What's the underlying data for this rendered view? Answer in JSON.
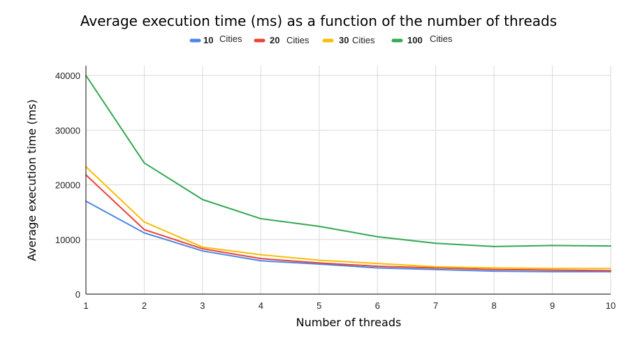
{
  "chart_data": {
    "type": "line",
    "title": "Average execution time (ms) as a function of the number of threads",
    "xlabel": "Number of threads",
    "ylabel": "Average execution time (ms)",
    "x": [
      1,
      2,
      3,
      4,
      5,
      6,
      7,
      8,
      9,
      10
    ],
    "xlim": [
      1,
      10
    ],
    "ylim": [
      0,
      40000
    ],
    "yticks": [
      0,
      10000,
      20000,
      30000,
      40000
    ],
    "grid": true,
    "legend_position": "top-center",
    "series": [
      {
        "name": "10 Cities",
        "legend_number": "10",
        "legend_word": "Cities",
        "color": "#4a86e8",
        "values": [
          17000,
          11200,
          7900,
          6100,
          5500,
          4800,
          4500,
          4200,
          4100,
          4100
        ]
      },
      {
        "name": "20 Cities",
        "legend_number": "20",
        "legend_word": "Cities",
        "color": "#e84335",
        "values": [
          21800,
          11800,
          8300,
          6500,
          5700,
          5100,
          4800,
          4500,
          4400,
          4300
        ]
      },
      {
        "name": "30 Cities",
        "legend_number": "30",
        "legend_word": "Cities",
        "color": "#fbbc04",
        "values": [
          23300,
          13200,
          8600,
          7200,
          6200,
          5600,
          5000,
          4800,
          4700,
          4700
        ]
      },
      {
        "name": "100 Cities",
        "legend_number": "100",
        "legend_word": "Cities",
        "color": "#34a853",
        "values": [
          40000,
          24000,
          17300,
          13800,
          12400,
          10500,
          9300,
          8700,
          8900,
          8800
        ]
      }
    ]
  }
}
